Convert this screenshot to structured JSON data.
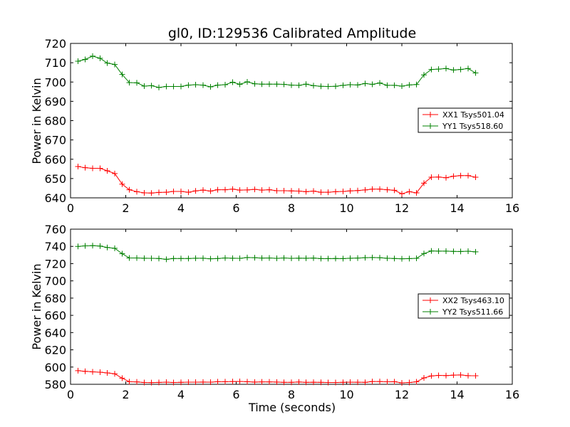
{
  "chart_data": [
    {
      "type": "line",
      "title": "gl0, ID:129536 Calibrated Amplitude",
      "xlabel": "",
      "ylabel": "Power in Kelvin",
      "xlim": [
        0,
        16
      ],
      "ylim": [
        640,
        720
      ],
      "xticks": [
        0,
        2,
        4,
        6,
        8,
        10,
        12,
        14,
        16
      ],
      "yticks": [
        640,
        650,
        660,
        670,
        680,
        690,
        700,
        710,
        720
      ],
      "grid": false,
      "legend_position": "right",
      "x": [
        0.27,
        0.53,
        0.8,
        1.07,
        1.33,
        1.6,
        1.87,
        2.13,
        2.4,
        2.67,
        2.93,
        3.2,
        3.47,
        3.73,
        4.0,
        4.27,
        4.53,
        4.8,
        5.07,
        5.33,
        5.6,
        5.87,
        6.13,
        6.4,
        6.67,
        6.93,
        7.2,
        7.47,
        7.73,
        8.0,
        8.27,
        8.53,
        8.8,
        9.07,
        9.33,
        9.6,
        9.87,
        10.13,
        10.4,
        10.67,
        10.93,
        11.2,
        11.47,
        11.73,
        12.0,
        12.27,
        12.53,
        12.8,
        13.07,
        13.33,
        13.6,
        13.87,
        14.13,
        14.4,
        14.67
      ],
      "series": [
        {
          "name": "XX1 Tsys501.04",
          "color": "#ff0000",
          "values": [
            656.2,
            655.6,
            655.3,
            655.3,
            654.0,
            652.6,
            647.1,
            644.2,
            643.2,
            642.6,
            642.5,
            642.8,
            642.9,
            643.3,
            643.3,
            642.9,
            643.6,
            644.0,
            643.5,
            644.2,
            644.2,
            644.5,
            644.0,
            644.1,
            644.4,
            644.0,
            644.2,
            643.7,
            643.7,
            643.6,
            643.5,
            643.2,
            643.5,
            642.9,
            642.9,
            643.2,
            643.3,
            643.6,
            643.8,
            644.1,
            644.5,
            644.5,
            644.2,
            643.9,
            642.1,
            643.2,
            642.6,
            647.6,
            650.7,
            650.8,
            650.4,
            651.2,
            651.5,
            651.5,
            650.7
          ]
        },
        {
          "name": "YY1 Tsys518.60",
          "color": "#008000",
          "values": [
            710.8,
            711.7,
            713.4,
            712.3,
            709.8,
            709.1,
            703.9,
            699.7,
            699.6,
            697.9,
            698.1,
            697.2,
            697.7,
            697.7,
            697.7,
            698.4,
            698.6,
            698.4,
            697.5,
            698.4,
            698.6,
            699.9,
            698.8,
            700.1,
            699.1,
            698.9,
            698.9,
            698.9,
            698.8,
            698.4,
            698.3,
            698.9,
            698.1,
            697.8,
            697.7,
            697.8,
            698.3,
            698.6,
            698.5,
            699.2,
            698.8,
            699.5,
            698.3,
            698.3,
            697.9,
            698.5,
            698.7,
            703.7,
            706.5,
            706.7,
            707.0,
            706.2,
            706.5,
            707.0,
            704.7
          ]
        }
      ]
    },
    {
      "type": "line",
      "title": "",
      "xlabel": "Time (seconds)",
      "ylabel": "Power in Kelvin",
      "xlim": [
        0,
        16
      ],
      "ylim": [
        580,
        760
      ],
      "xticks": [
        0,
        2,
        4,
        6,
        8,
        10,
        12,
        14,
        16
      ],
      "yticks": [
        580,
        600,
        620,
        640,
        660,
        680,
        700,
        720,
        740,
        760
      ],
      "grid": false,
      "legend_position": "right",
      "x": [
        0.27,
        0.53,
        0.8,
        1.07,
        1.33,
        1.6,
        1.87,
        2.13,
        2.4,
        2.67,
        2.93,
        3.2,
        3.47,
        3.73,
        4.0,
        4.27,
        4.53,
        4.8,
        5.07,
        5.33,
        5.6,
        5.87,
        6.13,
        6.4,
        6.67,
        6.93,
        7.2,
        7.47,
        7.73,
        8.0,
        8.27,
        8.53,
        8.8,
        9.07,
        9.33,
        9.6,
        9.87,
        10.13,
        10.4,
        10.67,
        10.93,
        11.2,
        11.47,
        11.73,
        12.0,
        12.27,
        12.53,
        12.8,
        13.07,
        13.33,
        13.6,
        13.87,
        14.13,
        14.4,
        14.67
      ],
      "series": [
        {
          "name": "XX2 Tsys463.10",
          "color": "#ff0000",
          "values": [
            595.8,
            595.1,
            594.5,
            594.0,
            593.2,
            592.2,
            587.1,
            583.0,
            582.8,
            582.1,
            582.0,
            582.2,
            582.5,
            582.1,
            582.3,
            582.5,
            582.5,
            582.6,
            582.5,
            583.0,
            583.0,
            583.2,
            583.3,
            583.0,
            582.6,
            582.8,
            582.8,
            582.6,
            582.3,
            582.3,
            582.7,
            582.3,
            582.4,
            582.3,
            582.1,
            582.1,
            582.3,
            582.5,
            582.4,
            582.3,
            583.2,
            583.2,
            582.9,
            583.0,
            581.7,
            582.1,
            582.9,
            587.4,
            589.7,
            590.3,
            590.1,
            590.6,
            590.8,
            590.0,
            589.9
          ]
        },
        {
          "name": "YY2 Tsys511.66",
          "color": "#008000",
          "values": [
            740.0,
            740.6,
            740.9,
            740.4,
            738.7,
            737.8,
            731.5,
            726.6,
            726.6,
            726.3,
            726.1,
            725.9,
            725.0,
            725.9,
            725.9,
            725.9,
            726.3,
            726.2,
            725.6,
            725.9,
            726.6,
            726.3,
            726.1,
            727.1,
            726.9,
            726.5,
            726.6,
            726.1,
            726.6,
            726.1,
            726.4,
            726.2,
            726.5,
            725.8,
            725.8,
            725.9,
            725.8,
            726.2,
            726.5,
            726.9,
            727.1,
            726.9,
            726.2,
            725.9,
            725.6,
            725.8,
            726.1,
            731.7,
            734.7,
            734.5,
            734.5,
            734.2,
            734.1,
            734.4,
            733.7
          ]
        }
      ]
    }
  ]
}
